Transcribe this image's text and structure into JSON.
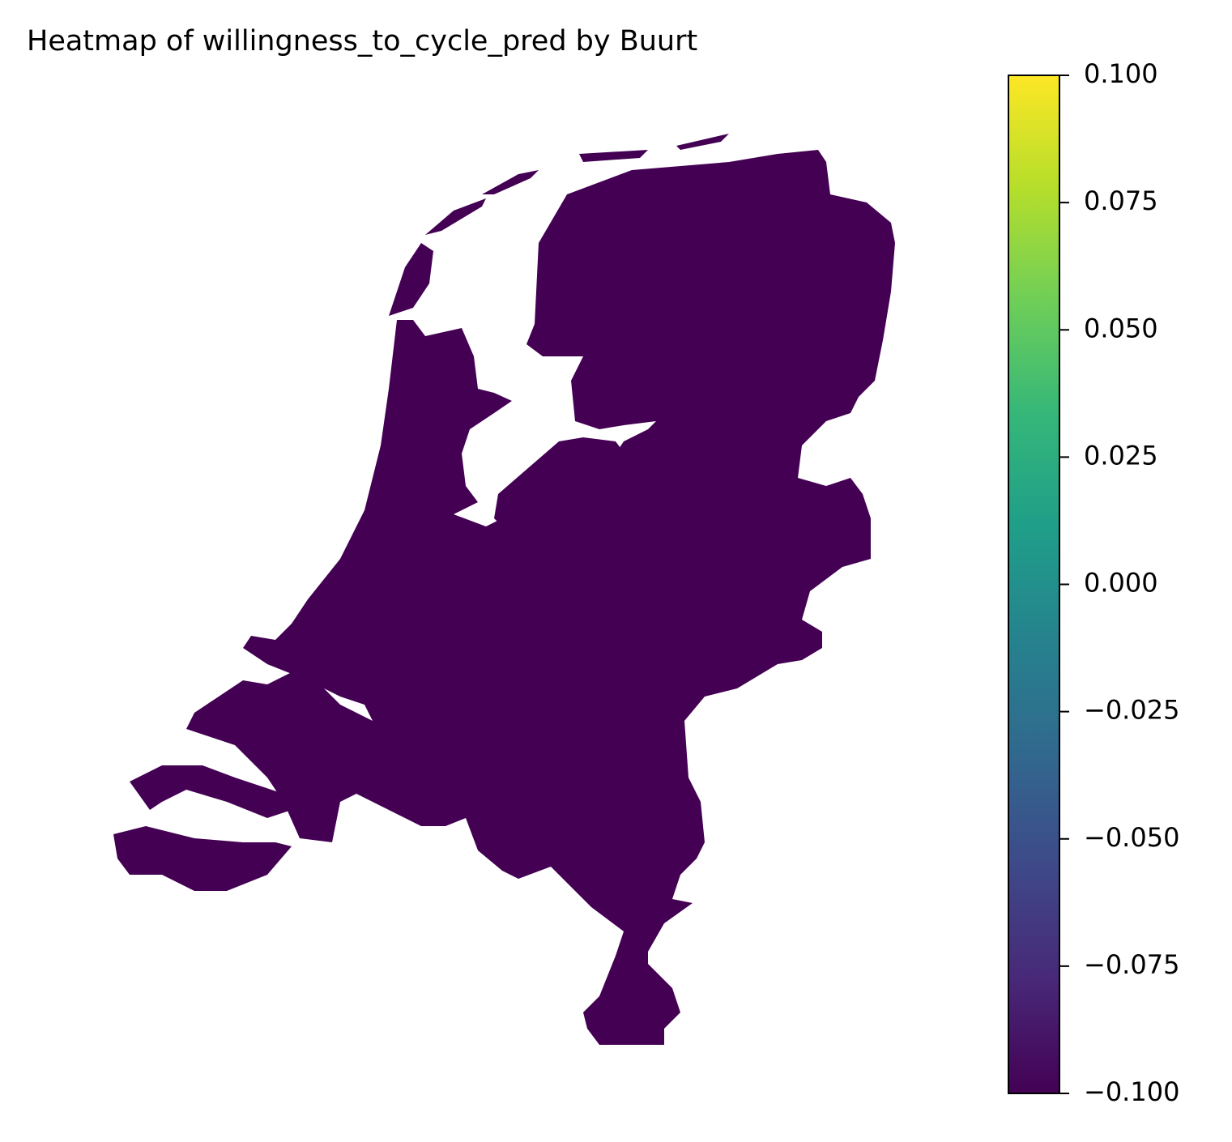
{
  "chart_data": {
    "type": "choropleth",
    "title": "Heatmap of willingness_to_cycle_pred by Buurt",
    "colormap": "viridis",
    "region_color": "#440154",
    "clim": [
      -0.1,
      0.1
    ],
    "colorbar_ticks": [
      {
        "value": 0.1,
        "label": "0.100"
      },
      {
        "value": 0.075,
        "label": "0.075"
      },
      {
        "value": 0.05,
        "label": "0.050"
      },
      {
        "value": 0.025,
        "label": "0.025"
      },
      {
        "value": 0,
        "label": "0.000"
      },
      {
        "value": -0.025,
        "label": "−0.025"
      },
      {
        "value": -0.05,
        "label": "−0.050"
      },
      {
        "value": -0.075,
        "label": "−0.075"
      },
      {
        "value": -0.1,
        "label": "−0.100"
      }
    ]
  }
}
